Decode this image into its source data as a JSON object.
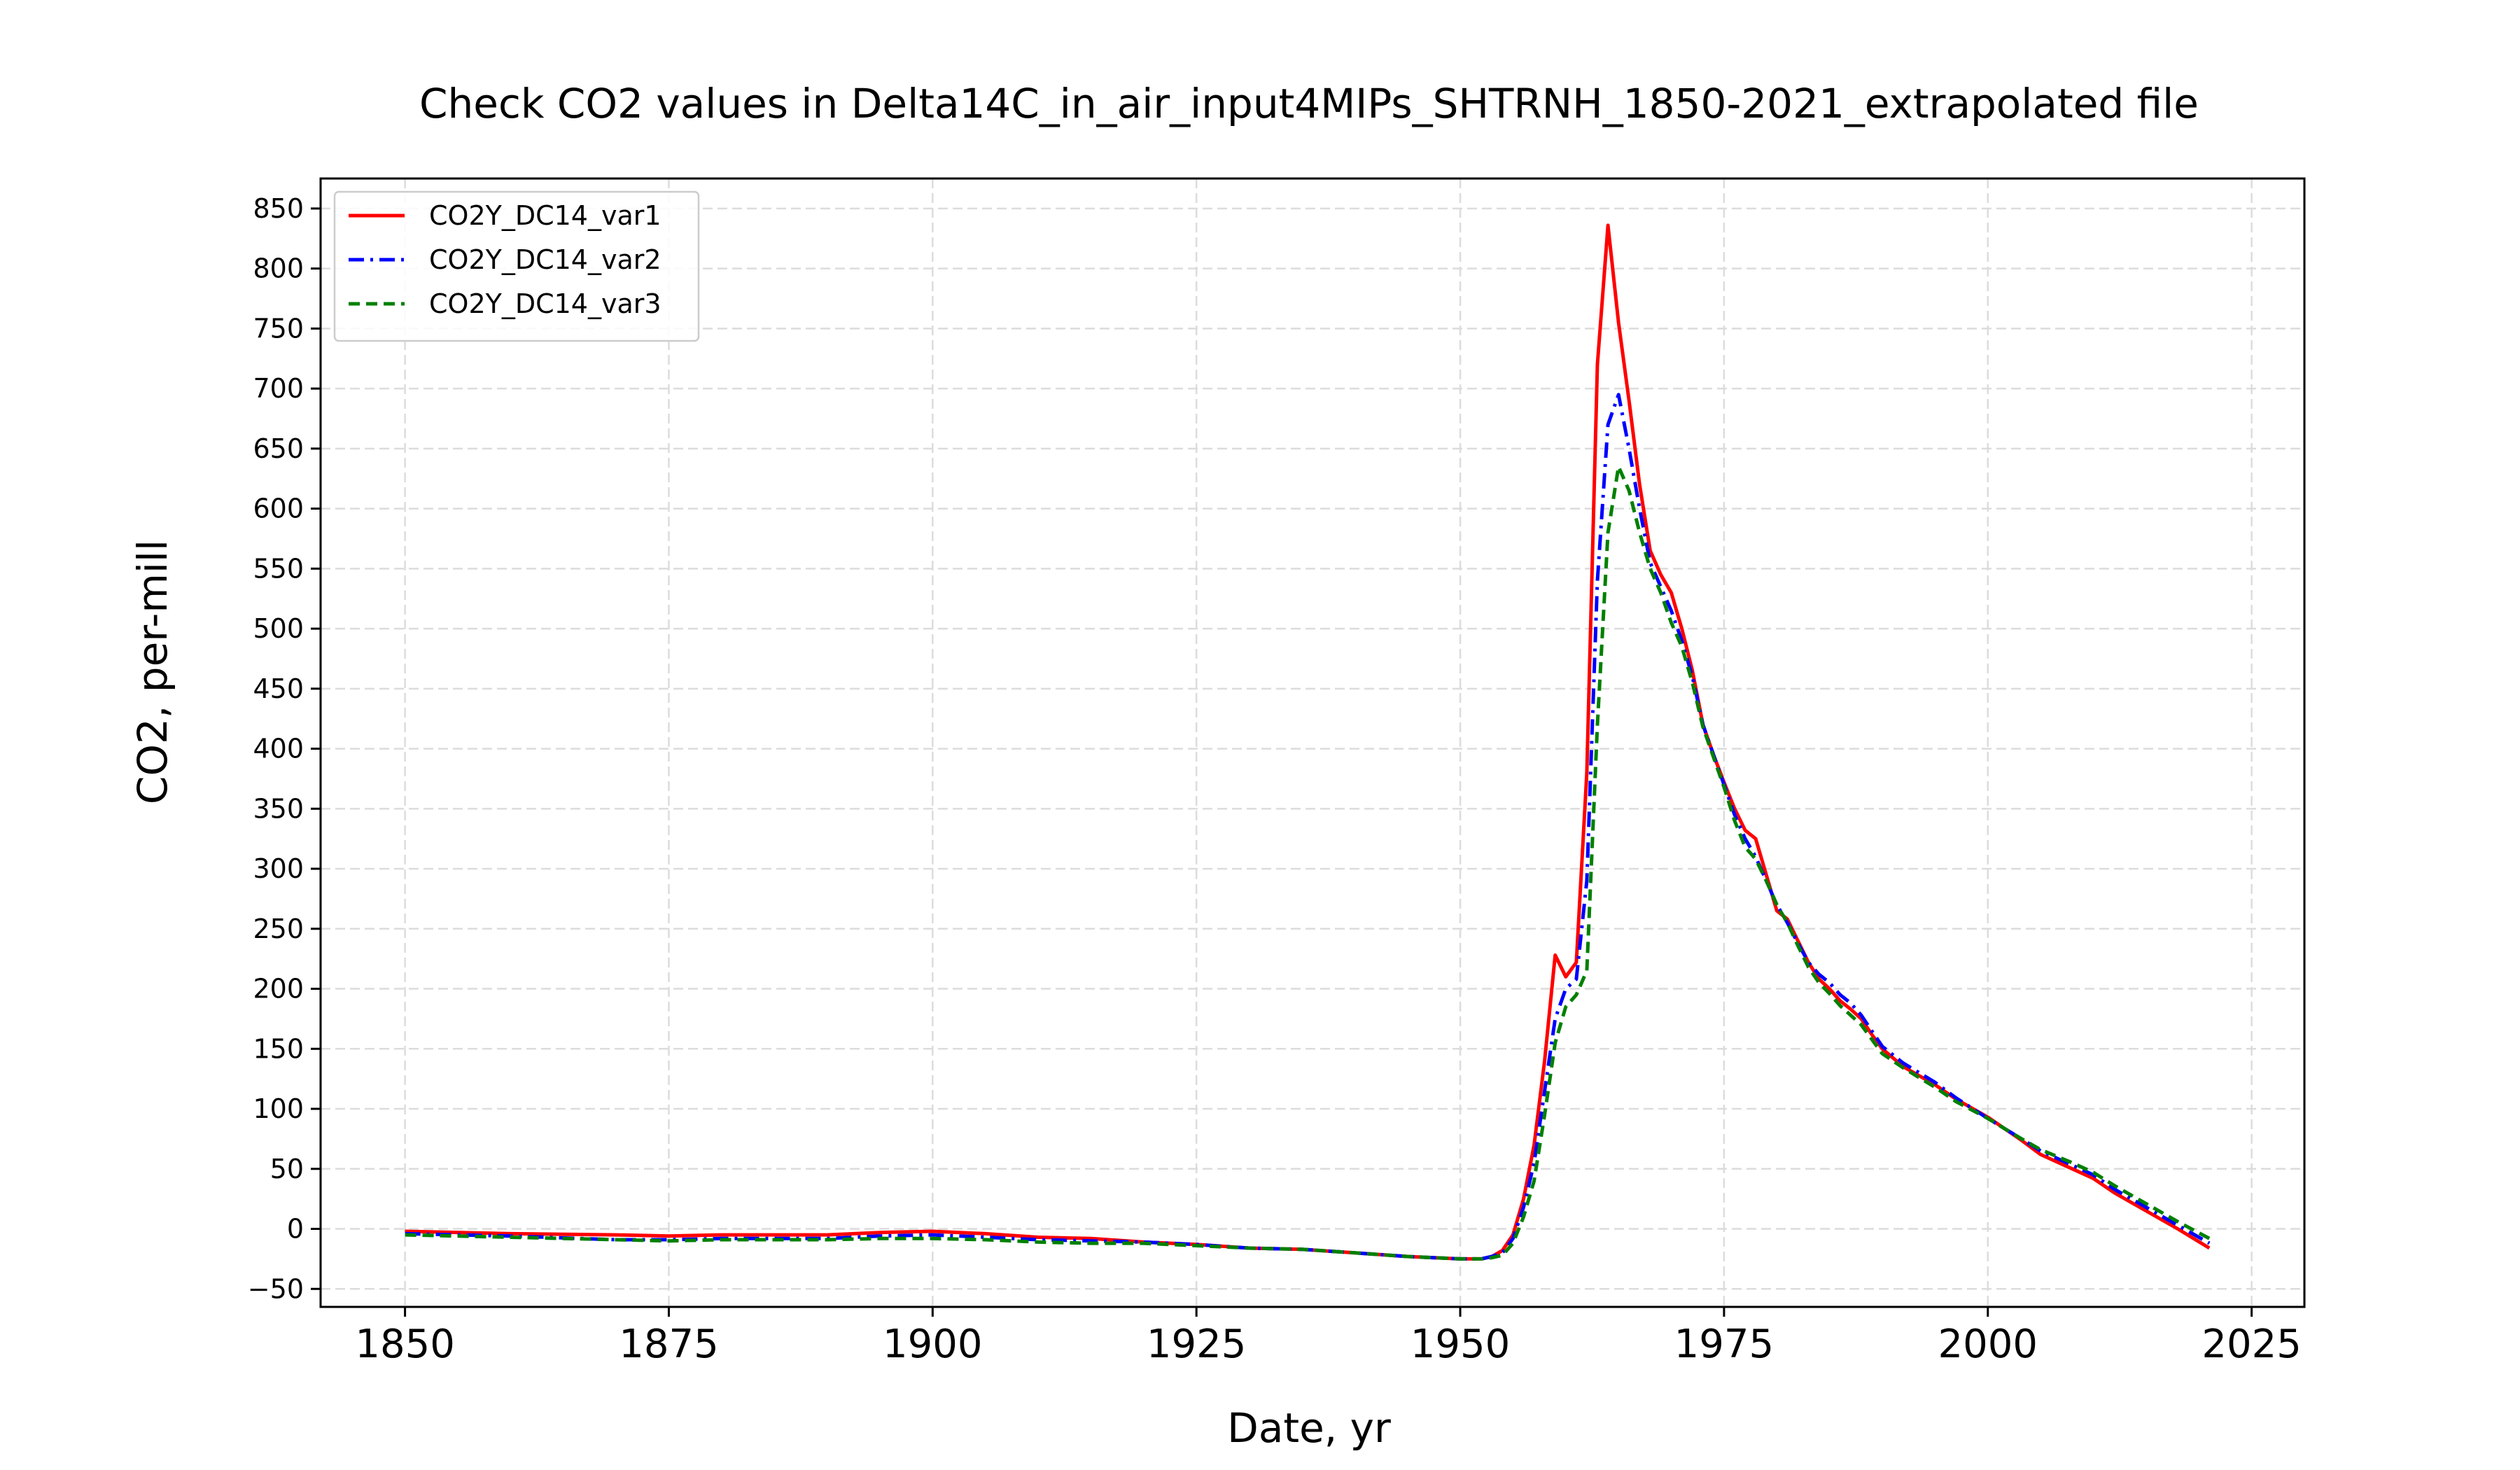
{
  "chart_data": {
    "type": "line",
    "title": "Check CO2 values in Delta14C_in_air_input4MIPs_SHTRNH_1850-2021_extrapolated file",
    "xlabel": "Date, yr",
    "ylabel": "CO2, per-mill",
    "xlim": [
      1842,
      2030
    ],
    "ylim": [
      -65,
      875
    ],
    "x_ticks": [
      1850,
      1875,
      1900,
      1925,
      1950,
      1975,
      2000,
      2025
    ],
    "y_ticks": [
      -50,
      0,
      50,
      100,
      150,
      200,
      250,
      300,
      350,
      400,
      450,
      500,
      550,
      600,
      650,
      700,
      750,
      800,
      850
    ],
    "grid": true,
    "legend_position": "upper-left",
    "series": [
      {
        "name": "CO2Y_DC14_var1",
        "color": "#ff0000",
        "style": "solid",
        "points": [
          [
            1850,
            -2
          ],
          [
            1860,
            -4
          ],
          [
            1870,
            -5
          ],
          [
            1875,
            -6
          ],
          [
            1880,
            -5
          ],
          [
            1890,
            -5
          ],
          [
            1895,
            -3
          ],
          [
            1900,
            -2
          ],
          [
            1905,
            -4
          ],
          [
            1910,
            -7
          ],
          [
            1915,
            -8
          ],
          [
            1920,
            -11
          ],
          [
            1925,
            -13
          ],
          [
            1930,
            -16
          ],
          [
            1935,
            -17
          ],
          [
            1940,
            -20
          ],
          [
            1945,
            -23
          ],
          [
            1950,
            -25
          ],
          [
            1952,
            -25
          ],
          [
            1953,
            -23
          ],
          [
            1954,
            -18
          ],
          [
            1955,
            -5
          ],
          [
            1956,
            25
          ],
          [
            1957,
            70
          ],
          [
            1958,
            140
          ],
          [
            1959,
            228
          ],
          [
            1960,
            210
          ],
          [
            1961,
            222
          ],
          [
            1962,
            380
          ],
          [
            1963,
            720
          ],
          [
            1964,
            836
          ],
          [
            1965,
            755
          ],
          [
            1966,
            690
          ],
          [
            1967,
            620
          ],
          [
            1968,
            565
          ],
          [
            1969,
            545
          ],
          [
            1970,
            530
          ],
          [
            1971,
            500
          ],
          [
            1972,
            465
          ],
          [
            1973,
            420
          ],
          [
            1974,
            395
          ],
          [
            1975,
            372
          ],
          [
            1976,
            350
          ],
          [
            1977,
            332
          ],
          [
            1978,
            325
          ],
          [
            1979,
            295
          ],
          [
            1980,
            265
          ],
          [
            1981,
            258
          ],
          [
            1982,
            240
          ],
          [
            1983,
            222
          ],
          [
            1984,
            208
          ],
          [
            1985,
            200
          ],
          [
            1986,
            190
          ],
          [
            1987,
            183
          ],
          [
            1988,
            175
          ],
          [
            1989,
            162
          ],
          [
            1990,
            150
          ],
          [
            1992,
            135
          ],
          [
            1995,
            120
          ],
          [
            1997,
            108
          ],
          [
            2000,
            93
          ],
          [
            2003,
            75
          ],
          [
            2005,
            62
          ],
          [
            2008,
            50
          ],
          [
            2010,
            42
          ],
          [
            2012,
            30
          ],
          [
            2015,
            15
          ],
          [
            2018,
            0
          ],
          [
            2021,
            -16
          ]
        ]
      },
      {
        "name": "CO2Y_DC14_var2",
        "color": "#0000ff",
        "style": "dashdot",
        "points": [
          [
            1850,
            -4
          ],
          [
            1860,
            -6
          ],
          [
            1870,
            -9
          ],
          [
            1875,
            -9
          ],
          [
            1880,
            -8
          ],
          [
            1890,
            -8
          ],
          [
            1895,
            -6
          ],
          [
            1900,
            -5
          ],
          [
            1905,
            -7
          ],
          [
            1910,
            -9
          ],
          [
            1915,
            -10
          ],
          [
            1920,
            -11
          ],
          [
            1925,
            -13
          ],
          [
            1930,
            -16
          ],
          [
            1935,
            -17
          ],
          [
            1940,
            -20
          ],
          [
            1945,
            -23
          ],
          [
            1950,
            -25
          ],
          [
            1952,
            -25
          ],
          [
            1953,
            -23
          ],
          [
            1954,
            -20
          ],
          [
            1955,
            -8
          ],
          [
            1956,
            18
          ],
          [
            1957,
            55
          ],
          [
            1958,
            115
          ],
          [
            1959,
            175
          ],
          [
            1960,
            200
          ],
          [
            1961,
            208
          ],
          [
            1962,
            290
          ],
          [
            1963,
            540
          ],
          [
            1964,
            670
          ],
          [
            1965,
            695
          ],
          [
            1966,
            650
          ],
          [
            1967,
            600
          ],
          [
            1968,
            555
          ],
          [
            1969,
            535
          ],
          [
            1970,
            515
          ],
          [
            1971,
            490
          ],
          [
            1972,
            460
          ],
          [
            1973,
            420
          ],
          [
            1974,
            395
          ],
          [
            1975,
            370
          ],
          [
            1976,
            345
          ],
          [
            1977,
            325
          ],
          [
            1978,
            310
          ],
          [
            1979,
            290
          ],
          [
            1980,
            270
          ],
          [
            1981,
            255
          ],
          [
            1982,
            238
          ],
          [
            1983,
            222
          ],
          [
            1984,
            212
          ],
          [
            1985,
            205
          ],
          [
            1986,
            195
          ],
          [
            1987,
            188
          ],
          [
            1988,
            178
          ],
          [
            1989,
            165
          ],
          [
            1990,
            152
          ],
          [
            1992,
            138
          ],
          [
            1995,
            122
          ],
          [
            1997,
            109
          ],
          [
            2000,
            92
          ],
          [
            2003,
            76
          ],
          [
            2005,
            65
          ],
          [
            2008,
            53
          ],
          [
            2010,
            45
          ],
          [
            2012,
            33
          ],
          [
            2015,
            18
          ],
          [
            2018,
            3
          ],
          [
            2021,
            -12
          ]
        ]
      },
      {
        "name": "CO2Y_DC14_var3",
        "color": "#008000",
        "style": "dashed",
        "points": [
          [
            1850,
            -5
          ],
          [
            1860,
            -7
          ],
          [
            1870,
            -9
          ],
          [
            1875,
            -10
          ],
          [
            1880,
            -9
          ],
          [
            1890,
            -9
          ],
          [
            1895,
            -8
          ],
          [
            1900,
            -8
          ],
          [
            1905,
            -9
          ],
          [
            1910,
            -11
          ],
          [
            1915,
            -12
          ],
          [
            1920,
            -12
          ],
          [
            1925,
            -14
          ],
          [
            1930,
            -16
          ],
          [
            1935,
            -17
          ],
          [
            1940,
            -20
          ],
          [
            1945,
            -23
          ],
          [
            1950,
            -25
          ],
          [
            1952,
            -25
          ],
          [
            1953,
            -24
          ],
          [
            1954,
            -22
          ],
          [
            1955,
            -12
          ],
          [
            1956,
            10
          ],
          [
            1957,
            40
          ],
          [
            1958,
            95
          ],
          [
            1959,
            155
          ],
          [
            1960,
            185
          ],
          [
            1961,
            195
          ],
          [
            1962,
            215
          ],
          [
            1963,
            420
          ],
          [
            1964,
            580
          ],
          [
            1965,
            635
          ],
          [
            1966,
            615
          ],
          [
            1967,
            580
          ],
          [
            1968,
            550
          ],
          [
            1969,
            530
          ],
          [
            1970,
            505
          ],
          [
            1971,
            485
          ],
          [
            1972,
            455
          ],
          [
            1973,
            418
          ],
          [
            1974,
            393
          ],
          [
            1975,
            368
          ],
          [
            1976,
            340
          ],
          [
            1977,
            318
          ],
          [
            1978,
            308
          ],
          [
            1979,
            290
          ],
          [
            1980,
            270
          ],
          [
            1981,
            255
          ],
          [
            1982,
            236
          ],
          [
            1983,
            218
          ],
          [
            1984,
            205
          ],
          [
            1985,
            196
          ],
          [
            1986,
            186
          ],
          [
            1987,
            178
          ],
          [
            1988,
            170
          ],
          [
            1989,
            158
          ],
          [
            1990,
            146
          ],
          [
            1992,
            134
          ],
          [
            1995,
            118
          ],
          [
            1997,
            106
          ],
          [
            2000,
            92
          ],
          [
            2003,
            76
          ],
          [
            2005,
            66
          ],
          [
            2008,
            55
          ],
          [
            2010,
            47
          ],
          [
            2012,
            36
          ],
          [
            2015,
            21
          ],
          [
            2018,
            6
          ],
          [
            2021,
            -8
          ]
        ]
      }
    ]
  }
}
